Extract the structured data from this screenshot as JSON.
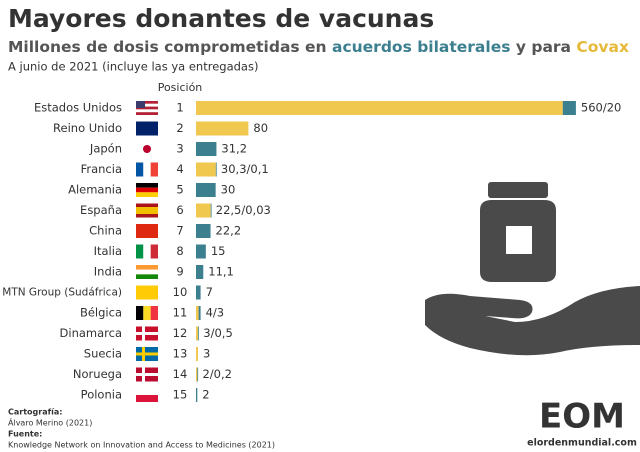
{
  "chart_data": {
    "type": "stacked-bar",
    "title": "Mayores donantes de vacunas",
    "subtitle_parts": [
      "Millones de dosis comprometidas en ",
      " y para "
    ],
    "note": "A junio de 2021 (incluye las ya entregadas)",
    "position_header": "Posición",
    "categories": [
      "Estados Unidos",
      "Reino Unido",
      "Japón",
      "Francia",
      "Alemania",
      "España",
      "China",
      "Italia",
      "India",
      "MTN Group (Sudáfrica)",
      "Bélgica",
      "Dinamarca",
      "Suecia",
      "Noruega",
      "Polonia"
    ],
    "positions": [
      1,
      2,
      3,
      4,
      5,
      6,
      7,
      8,
      9,
      10,
      11,
      12,
      13,
      14,
      15
    ],
    "series": [
      {
        "name": "Covax",
        "color": "#f0c74f",
        "values": [
          560,
          80,
          null,
          30.3,
          null,
          22.5,
          null,
          null,
          null,
          null,
          4,
          3,
          3,
          2,
          null
        ]
      },
      {
        "name": "acuerdos bilaterales",
        "color": "#3c7f8f",
        "values": [
          20,
          null,
          31.2,
          0.1,
          30,
          0.03,
          22.2,
          15,
          11.1,
          7,
          3,
          0.5,
          null,
          0.2,
          2
        ]
      }
    ],
    "value_labels": [
      "560/20",
      "80",
      "31,2",
      "30,3/0,1",
      "30",
      "22,5/0,03",
      "22,2",
      "15",
      "11,1",
      "7",
      "4/3",
      "3/0,5",
      "3",
      "2/0,2",
      "2"
    ],
    "credits": {
      "cartography_label": "Cartografía:",
      "cartography": "Álvaro Merino (2021)",
      "source_label": "Fuente:",
      "source": "Knowledge Network on Innovation and Access to Medicines (2021)"
    },
    "logo": {
      "mark": "EOM",
      "site": "elordenmundial.com"
    }
  }
}
